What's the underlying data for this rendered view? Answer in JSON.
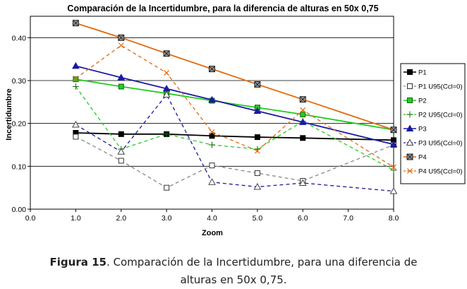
{
  "chart_data": {
    "type": "line",
    "title": "Comparación de la Incertidumbre, para la diferencia de alturas en 50x 0,75",
    "xlabel": "Zoom",
    "ylabel": "Incertidumbre",
    "xlim": [
      0,
      8
    ],
    "ylim": [
      0,
      0.45
    ],
    "xticks": [
      "0.0",
      "1.0",
      "2.0",
      "3.0",
      "4.0",
      "5.0",
      "6.0",
      "7.0",
      "8.0"
    ],
    "yticks": [
      "0.00",
      "0.10",
      "0.20",
      "0.30",
      "0.40"
    ],
    "x": [
      1,
      2,
      3,
      4,
      5,
      6,
      8
    ],
    "legend_position": "right",
    "series": [
      {
        "name": "P1",
        "color": "#000000",
        "marker": "square-filled",
        "dash": false,
        "values": [
          0.178,
          0.175,
          0.175,
          0.171,
          0.168,
          0.166,
          0.161
        ]
      },
      {
        "name": "P1 U95(Ccl=0)",
        "color": "#888888",
        "marker": "square-open",
        "dash": true,
        "values": [
          0.169,
          0.113,
          0.05,
          0.102,
          0.084,
          0.066,
          0.15
        ]
      },
      {
        "name": "P2",
        "color": "#22cc22",
        "marker": "square-green",
        "dash": false,
        "values": [
          0.303,
          0.286,
          0.27,
          0.253,
          0.237,
          0.221,
          0.185
        ]
      },
      {
        "name": "P2 U95(Ccl=0)",
        "color": "#22cc22",
        "marker": "plus",
        "dash": true,
        "values": [
          0.286,
          0.14,
          0.175,
          0.15,
          0.14,
          0.205,
          0.091
        ]
      },
      {
        "name": "P3",
        "color": "#1a1aa0",
        "marker": "triangle-filled",
        "dash": false,
        "values": [
          0.334,
          0.307,
          0.281,
          0.255,
          0.229,
          0.203,
          0.151
        ]
      },
      {
        "name": "P3 U95(Ccl=0)",
        "color": "#1a1aa0",
        "marker": "triangle-open",
        "dash": true,
        "values": [
          0.197,
          0.134,
          0.267,
          0.063,
          0.052,
          0.061,
          0.042
        ]
      },
      {
        "name": "P4",
        "color": "#e06a10",
        "marker": "square-x",
        "dash": false,
        "values": [
          0.434,
          0.4,
          0.363,
          0.327,
          0.291,
          0.256,
          0.185
        ]
      },
      {
        "name": "P4 U95(Ccl=0)",
        "color": "#e06a10",
        "marker": "x",
        "dash": true,
        "values": [
          0.305,
          0.382,
          0.318,
          0.18,
          0.136,
          0.231,
          0.098
        ]
      }
    ]
  },
  "caption": {
    "label": "Figura 15",
    "line1": ". Comparación de la Incertidumbre, para una diferencia de",
    "line2": "alturas en 50x 0,75."
  }
}
